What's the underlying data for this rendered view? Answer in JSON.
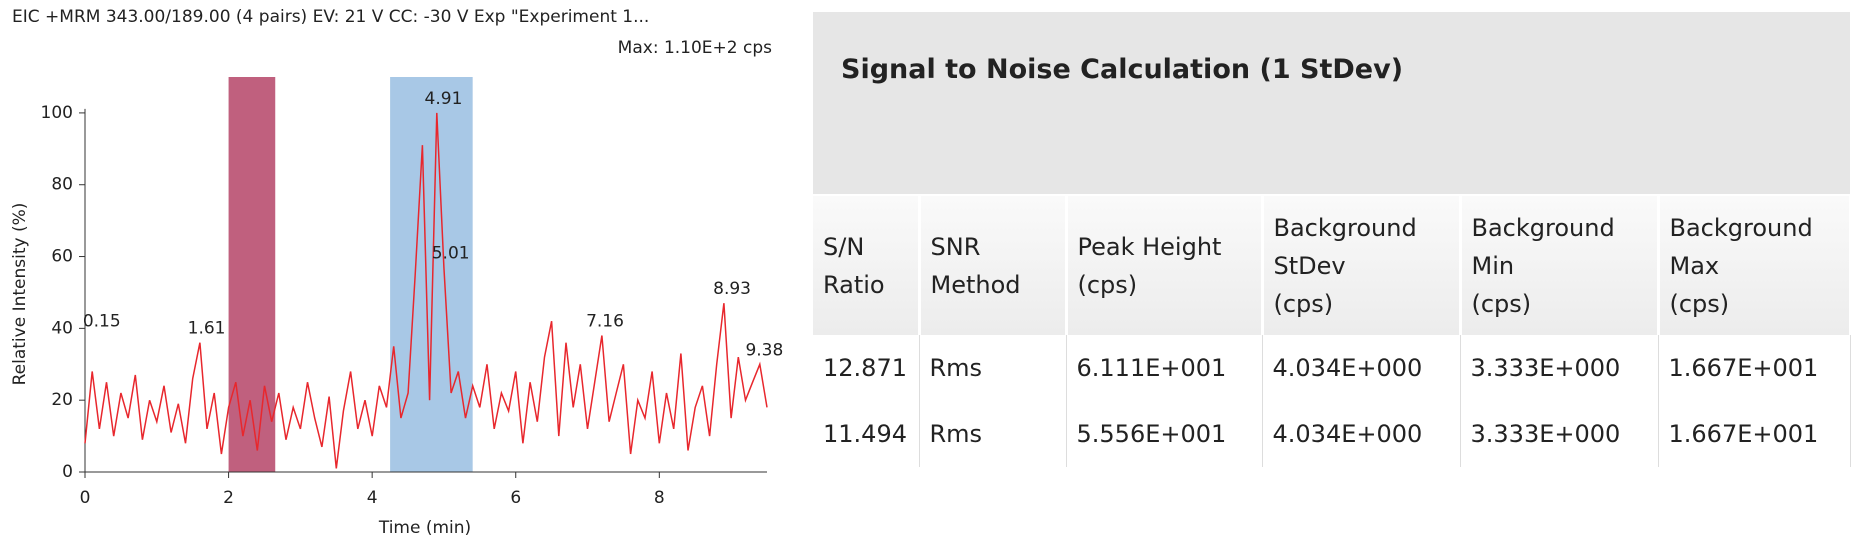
{
  "chart_data": {
    "type": "line",
    "title": "EIC +MRM 343.00/189.00 (4 pairs) EV: 21 V CC: -30 V Exp \"Experiment 1...",
    "subtitle": "Max: 1.10E+2 cps",
    "x_label": "Time (min)",
    "y_label": "Relative Intensity (%)",
    "xlim": [
      0,
      9.5
    ],
    "ylim": [
      0,
      110
    ],
    "xticks": [
      0,
      2,
      4,
      6,
      8
    ],
    "yticks": [
      0,
      20,
      40,
      60,
      80,
      100
    ],
    "regions": [
      {
        "start": 2,
        "end": 2.65,
        "color": "#c0607e"
      },
      {
        "start": 4.25,
        "end": 5.4,
        "color": "#a8c8e6"
      }
    ],
    "series": [
      {
        "color": "#e8272d",
        "x": [
          0,
          0.1,
          0.2,
          0.3,
          0.4,
          0.5,
          0.6,
          0.7,
          0.8,
          0.9,
          1,
          1.1,
          1.2,
          1.3,
          1.4,
          1.5,
          1.6,
          1.7,
          1.8,
          1.9,
          2,
          2.1,
          2.2,
          2.3,
          2.4,
          2.5,
          2.6,
          2.7,
          2.8,
          2.9,
          3,
          3.1,
          3.2,
          3.3,
          3.4,
          3.5,
          3.6,
          3.7,
          3.8,
          3.9,
          4,
          4.1,
          4.2,
          4.3,
          4.4,
          4.5,
          4.6,
          4.7,
          4.8,
          4.9,
          5,
          5.1,
          5.2,
          5.3,
          5.4,
          5.5,
          5.6,
          5.7,
          5.8,
          5.9,
          6,
          6.1,
          6.2,
          6.3,
          6.4,
          6.5,
          6.6,
          6.7,
          6.8,
          6.9,
          7,
          7.1,
          7.2,
          7.3,
          7.4,
          7.5,
          7.6,
          7.7,
          7.8,
          7.9,
          8,
          8.1,
          8.2,
          8.3,
          8.4,
          8.5,
          8.6,
          8.7,
          8.8,
          8.9,
          9,
          9.1,
          9.2,
          9.3,
          9.4,
          9.5
        ],
        "values": [
          8,
          28,
          12,
          25,
          10,
          22,
          15,
          27,
          9,
          20,
          14,
          24,
          11,
          19,
          8,
          26,
          36,
          12,
          22,
          5,
          18,
          25,
          10,
          20,
          6,
          24,
          14,
          22,
          9,
          18,
          12,
          25,
          15,
          7,
          21,
          1,
          17,
          28,
          12,
          20,
          10,
          24,
          18,
          35,
          15,
          22,
          55,
          91,
          20,
          100,
          57,
          22,
          28,
          15,
          24,
          18,
          30,
          12,
          22,
          17,
          28,
          8,
          25,
          14,
          32,
          42,
          10,
          36,
          18,
          30,
          12,
          25,
          38,
          14,
          22,
          30,
          5,
          20,
          15,
          28,
          8,
          22,
          12,
          33,
          6,
          18,
          24,
          10,
          30,
          47,
          15,
          32,
          20,
          25,
          30,
          18
        ]
      }
    ],
    "annotations": [
      {
        "x": 0.15,
        "y": 38
      },
      {
        "x": 1.61,
        "y": 36
      },
      {
        "x": 4.91,
        "y": 100
      },
      {
        "x": 5.01,
        "y": 57
      },
      {
        "x": 7.16,
        "y": 38
      },
      {
        "x": 8.93,
        "y": 47
      },
      {
        "x": 9.38,
        "y": 30
      }
    ]
  },
  "table": {
    "title": "Signal to Noise Calculation (1 StDev)",
    "columns": [
      [
        "S/N",
        "Ratio"
      ],
      [
        "SNR",
        "Method"
      ],
      [
        "Peak Height",
        "(cps)"
      ],
      [
        "Background",
        "StDev",
        "(cps)"
      ],
      [
        "Background",
        "Min",
        "(cps)"
      ],
      [
        "Background",
        "Max",
        "(cps)"
      ]
    ],
    "rows": [
      [
        "12.871",
        "Rms",
        "6.111E+001",
        "4.034E+000",
        "3.333E+000",
        "1.667E+001"
      ],
      [
        "11.494",
        "Rms",
        "5.556E+001",
        "4.034E+000",
        "3.333E+000",
        "1.667E+001"
      ]
    ]
  }
}
